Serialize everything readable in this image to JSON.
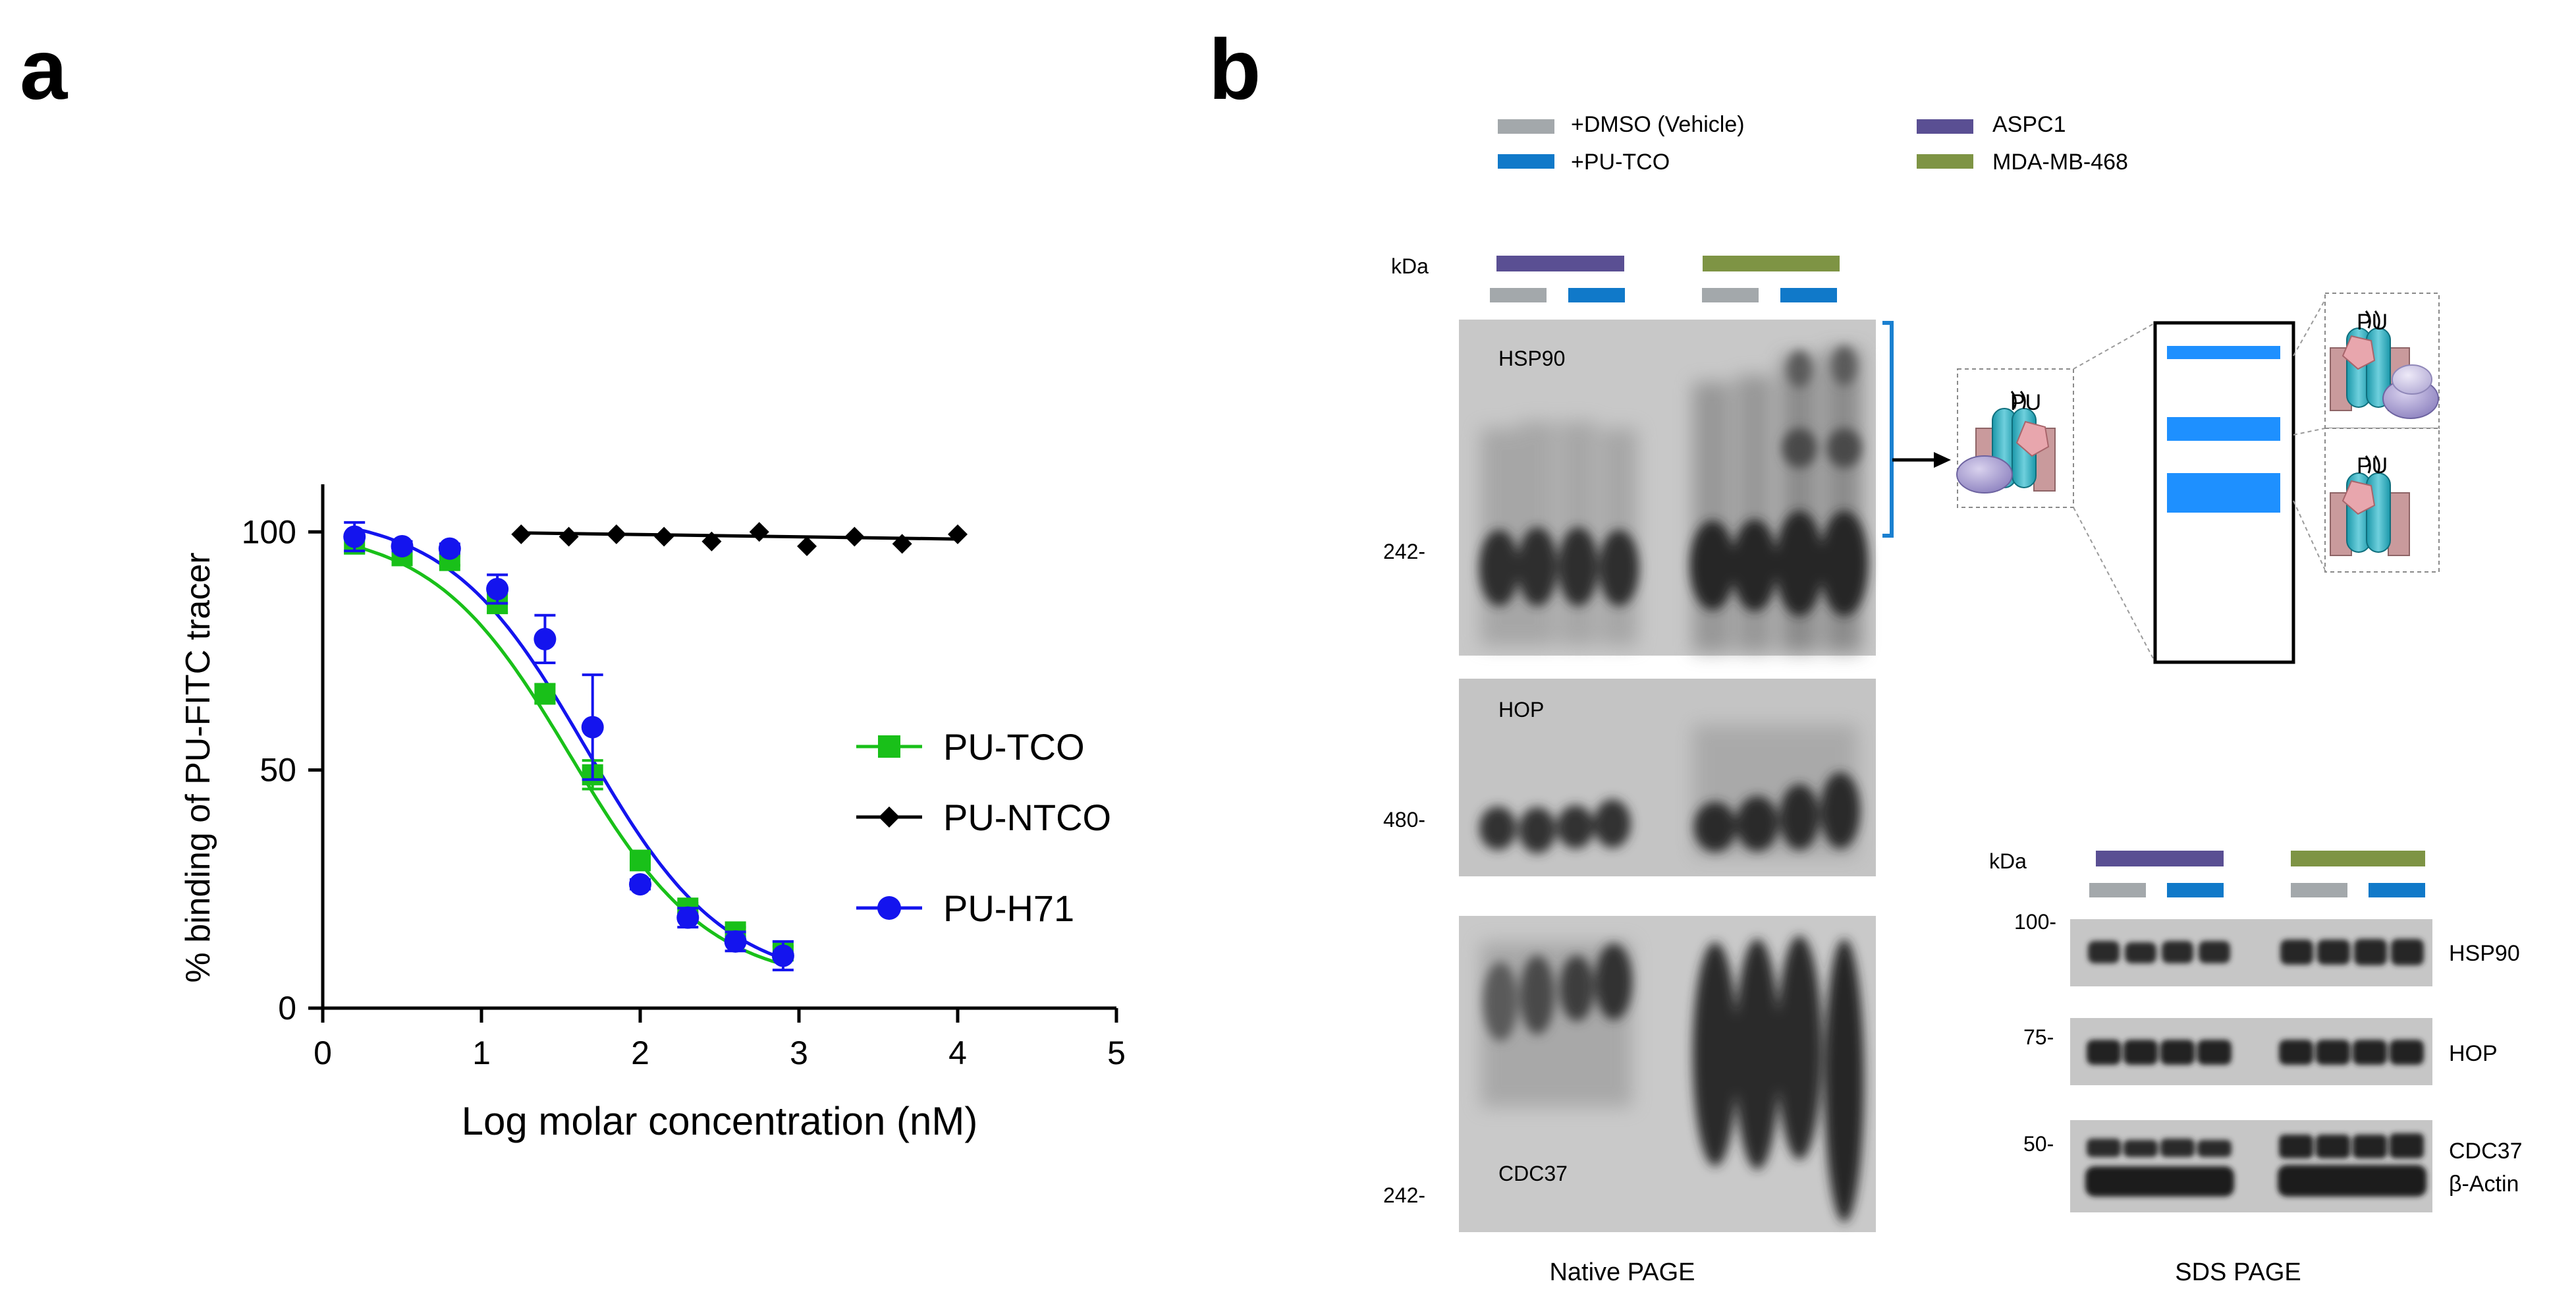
{
  "panel_a": {
    "label": "a",
    "chart_data": {
      "type": "scatter",
      "title": "",
      "xlabel": "Log molar concentration (nM)",
      "ylabel": "% binding of PU-FITC tracer",
      "xlim": [
        0,
        5
      ],
      "ylim": [
        0,
        110
      ],
      "x_ticks": [
        0,
        1,
        2,
        3,
        4,
        5
      ],
      "y_ticks": [
        0,
        50,
        100
      ],
      "legend_position": "right",
      "series": [
        {
          "name": "PU-TCO",
          "color": "#19c019",
          "marker": "square",
          "x": [
            0.2,
            0.5,
            0.8,
            1.1,
            1.4,
            1.7,
            2.0,
            2.3,
            2.6,
            2.9
          ],
          "y": [
            97.5,
            95,
            94,
            85,
            66,
            49,
            31,
            21,
            16,
            12
          ],
          "err": [
            2,
            1,
            1,
            2,
            2,
            3,
            2,
            1,
            1,
            1
          ],
          "fit": {
            "top": 101,
            "bottom": 5,
            "logIC50": 1.56,
            "hill": 1.0
          }
        },
        {
          "name": "PU-NTCO",
          "color": "#000000",
          "marker": "diamond",
          "x": [
            1.25,
            1.55,
            1.85,
            2.15,
            2.45,
            2.75,
            3.05,
            3.35,
            3.65,
            4.0
          ],
          "y": [
            99.5,
            99,
            99.5,
            99,
            98,
            100,
            97,
            99,
            97.5,
            99.5
          ],
          "err": [
            0,
            0,
            0,
            0,
            0,
            0,
            0,
            0,
            0,
            0
          ],
          "fit": {
            "line_y": [
              99.8,
              98.5
            ]
          }
        },
        {
          "name": "PU-H71",
          "color": "#1414ee",
          "marker": "circle",
          "x": [
            0.2,
            0.5,
            0.8,
            1.1,
            1.4,
            1.7,
            2.0,
            2.3,
            2.6,
            2.9
          ],
          "y": [
            99,
            97,
            96.5,
            88,
            77.5,
            59,
            26,
            19,
            14,
            11
          ],
          "err": [
            3,
            1,
            1,
            3,
            5,
            11,
            1,
            2,
            2,
            3
          ],
          "fit": {
            "top": 104,
            "bottom": 5,
            "logIC50": 1.66,
            "hill": 1.0
          }
        }
      ]
    }
  },
  "panel_b": {
    "label": "b",
    "legend": {
      "vehicle": {
        "label": "+DMSO (Vehicle)",
        "color": "#a3a8ab"
      },
      "pu_tco": {
        "label": "+PU-TCO",
        "color": "#1079c9"
      },
      "aspc1": {
        "label": "ASPC1",
        "color": "#5a4f93"
      },
      "mda": {
        "label": "MDA-MB-468",
        "color": "#7e9444"
      }
    },
    "native": {
      "kda": "kDa",
      "caption": "Native PAGE",
      "blots": [
        {
          "name": "HSP90",
          "marker": "242-"
        },
        {
          "name": "HOP",
          "marker": "480-"
        },
        {
          "name": "CDC37",
          "marker": "242-"
        }
      ]
    },
    "sds": {
      "kda": "kDa",
      "caption": "SDS PAGE",
      "markers": [
        "100-",
        "75-",
        "50-"
      ],
      "labels": [
        "HSP90",
        "HOP",
        "CDC37",
        "β-Actin"
      ]
    },
    "schematic": {
      "pu_label": "PU"
    }
  }
}
